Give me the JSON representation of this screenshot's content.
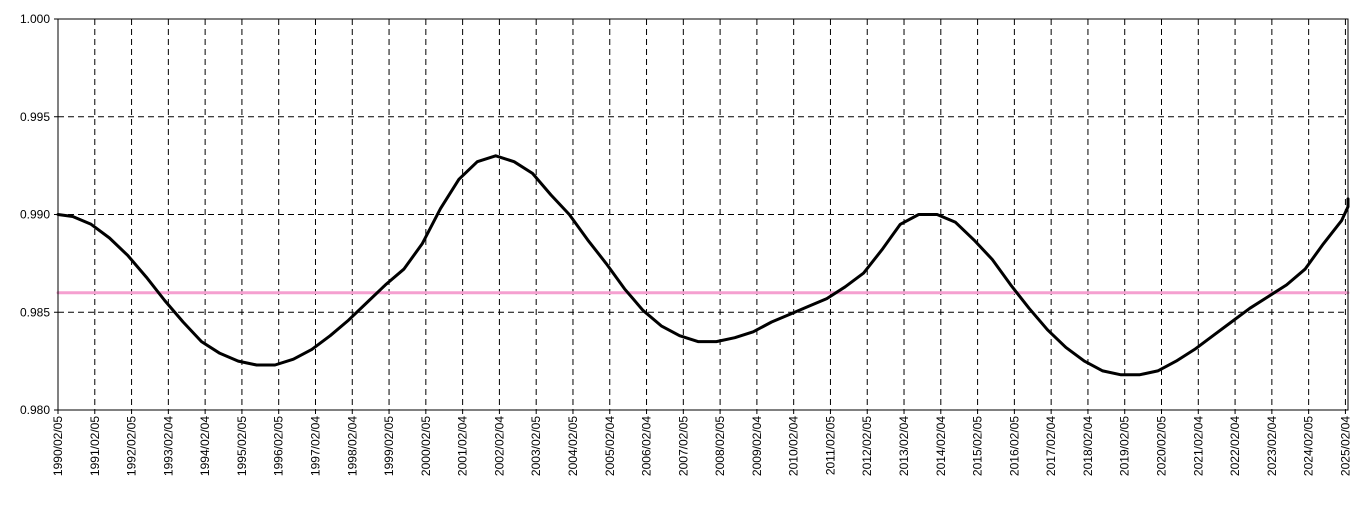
{
  "chart_data": {
    "type": "line",
    "title": "",
    "xlabel": "",
    "ylabel": "",
    "ylim": [
      0.98,
      1.0
    ],
    "grid": true,
    "y_ticks": [
      "0.980",
      "0.985",
      "0.990",
      "0.995",
      "1.000"
    ],
    "x_tick_labels": [
      "1990/02/05",
      "1991/02/05",
      "1992/02/05",
      "1993/02/04",
      "1994/02/04",
      "1995/02/05",
      "1996/02/05",
      "1997/02/04",
      "1998/02/04",
      "1999/02/05",
      "2000/02/05",
      "2001/02/04",
      "2002/02/04",
      "2003/02/05",
      "2004/02/05",
      "2005/02/04",
      "2006/02/04",
      "2007/02/05",
      "2008/02/05",
      "2009/02/04",
      "2010/02/04",
      "2011/02/05",
      "2012/02/05",
      "2013/02/04",
      "2014/02/04",
      "2015/02/05",
      "2016/02/05",
      "2017/02/04",
      "2018/02/04",
      "2019/02/05",
      "2020/02/05",
      "2021/02/04",
      "2022/02/04",
      "2023/02/04",
      "2024/02/05",
      "2025/02/04"
    ],
    "series": [
      {
        "color": "#000000",
        "x": [
          1990.1,
          1990.5,
          1991.0,
          1991.5,
          1992.0,
          1992.5,
          1993.0,
          1993.5,
          1994.0,
          1994.5,
          1995.0,
          1995.5,
          1995.8,
          1996.0,
          1996.5,
          1997.0,
          1997.5,
          1998.0,
          1998.5,
          1999.0,
          1999.5,
          2000.0,
          2000.5,
          2001.0,
          2001.5,
          2002.0,
          2002.5,
          2003.0,
          2003.5,
          2004.0,
          2004.5,
          2005.0,
          2005.5,
          2006.0,
          2006.5,
          2007.0,
          2007.5,
          2008.0,
          2008.5,
          2009.0,
          2009.5,
          2010.0,
          2010.5,
          2011.0,
          2011.5,
          2012.0,
          2012.5,
          2013.0,
          2013.5,
          2014.0,
          2014.5,
          2015.0,
          2015.5,
          2016.0,
          2016.5,
          2017.0,
          2017.5,
          2018.0,
          2018.5,
          2019.0,
          2019.5,
          2020.0,
          2020.5,
          2021.0,
          2021.5,
          2022.0,
          2022.5,
          2023.0,
          2023.5,
          2024.0,
          2024.5,
          2025.0,
          2025.5,
          2025.8
        ],
        "y": [
          0.99,
          0.9899,
          0.9895,
          0.9888,
          0.9879,
          0.9868,
          0.9856,
          0.9845,
          0.9835,
          0.9829,
          0.9825,
          0.9823,
          0.9823,
          0.9823,
          0.9826,
          0.9831,
          0.9838,
          0.9846,
          0.9855,
          0.9864,
          0.9872,
          0.9885,
          0.9903,
          0.9918,
          0.9927,
          0.993,
          0.9927,
          0.9921,
          0.991,
          0.99,
          0.9887,
          0.9875,
          0.9862,
          0.9851,
          0.9843,
          0.9838,
          0.9835,
          0.9835,
          0.9837,
          0.984,
          0.9845,
          0.9849,
          0.9853,
          0.9857,
          0.9863,
          0.987,
          0.9882,
          0.9895,
          0.99,
          0.99,
          0.9896,
          0.9887,
          0.9877,
          0.9864,
          0.9852,
          0.9841,
          0.9832,
          0.9825,
          0.982,
          0.9818,
          0.9818,
          0.982,
          0.9825,
          0.9831,
          0.9838,
          0.9845,
          0.9852,
          0.9858,
          0.9864,
          0.9872,
          0.9885,
          0.9897,
          0.9904,
          0.9908
        ]
      },
      {
        "color": "#f5a0d0",
        "x": [
          1989.9,
          2025.8
        ],
        "y": [
          0.986,
          0.986
        ]
      }
    ]
  }
}
